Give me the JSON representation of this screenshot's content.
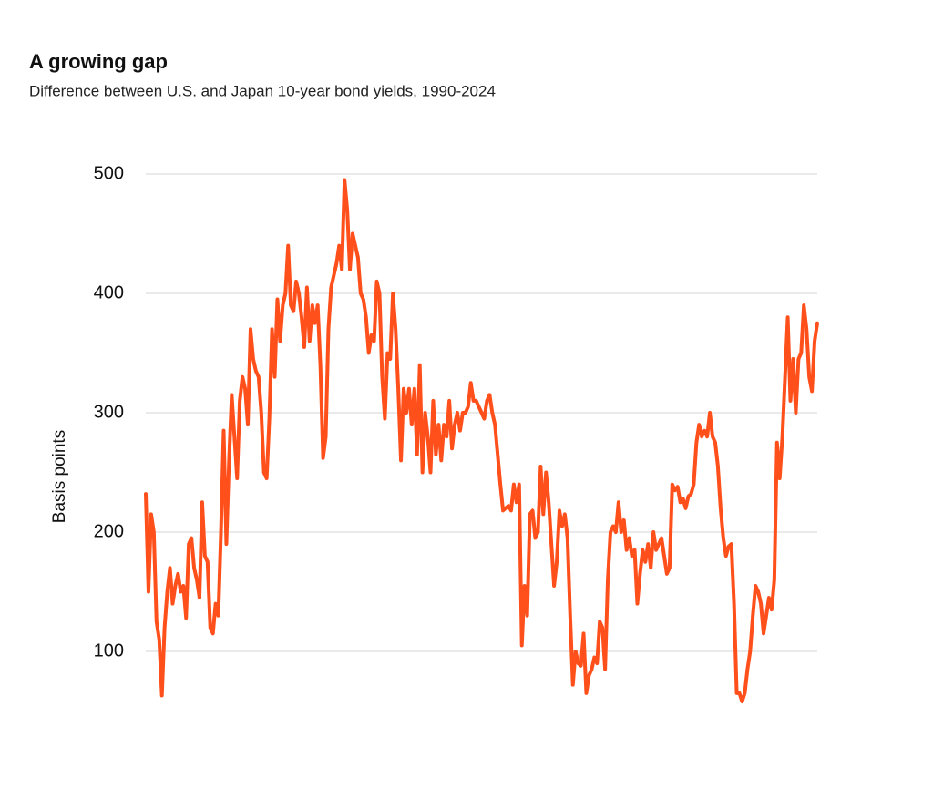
{
  "chart_data": {
    "type": "line",
    "title": "A growing gap",
    "subtitle": "Difference between U.S. and Japan 10-year bond yields, 1990-2024",
    "y_label": "Basis points",
    "color": "#ff4f1a",
    "grid": true,
    "ylim": [
      50,
      500
    ],
    "yticks": [
      100,
      200,
      300,
      400,
      500
    ],
    "values": [
      232,
      150,
      215,
      200,
      125,
      110,
      63,
      120,
      150,
      170,
      140,
      155,
      165,
      150,
      155,
      128,
      190,
      195,
      170,
      160,
      145,
      225,
      180,
      175,
      120,
      115,
      140,
      130,
      200,
      285,
      190,
      260,
      315,
      280,
      245,
      310,
      330,
      320,
      290,
      370,
      345,
      335,
      330,
      300,
      250,
      245,
      295,
      370,
      330,
      395,
      360,
      390,
      400,
      440,
      390,
      385,
      410,
      400,
      380,
      355,
      405,
      360,
      390,
      375,
      390,
      340,
      262,
      280,
      370,
      405,
      415,
      425,
      440,
      420,
      495,
      470,
      420,
      450,
      440,
      430,
      400,
      395,
      380,
      350,
      365,
      360,
      410,
      400,
      330,
      295,
      350,
      345,
      400,
      370,
      320,
      260,
      320,
      300,
      320,
      290,
      320,
      265,
      340,
      250,
      300,
      280,
      250,
      310,
      265,
      290,
      260,
      290,
      280,
      310,
      270,
      290,
      300,
      285,
      300,
      300,
      305,
      325,
      310,
      310,
      305,
      300,
      295,
      310,
      315,
      300,
      290,
      265,
      240,
      218,
      220,
      222,
      218,
      240,
      225,
      240,
      105,
      155,
      130,
      215,
      218,
      195,
      200,
      255,
      215,
      250,
      225,
      190,
      155,
      175,
      218,
      205,
      215,
      195,
      130,
      72,
      100,
      90,
      88,
      115,
      65,
      80,
      85,
      95,
      90,
      125,
      120,
      85,
      160,
      200,
      205,
      200,
      225,
      200,
      210,
      185,
      195,
      180,
      185,
      140,
      165,
      185,
      175,
      190,
      170,
      200,
      185,
      190,
      195,
      180,
      165,
      170,
      240,
      235,
      238,
      225,
      228,
      220,
      230,
      232,
      240,
      275,
      290,
      280,
      285,
      280,
      300,
      280,
      275,
      255,
      220,
      195,
      180,
      188,
      190,
      140,
      65,
      65,
      58,
      65,
      85,
      100,
      130,
      155,
      150,
      140,
      115,
      130,
      145,
      135,
      160,
      275,
      245,
      280,
      330,
      380,
      310,
      345,
      300,
      345,
      350,
      390,
      370,
      330,
      318,
      360,
      375
    ]
  }
}
